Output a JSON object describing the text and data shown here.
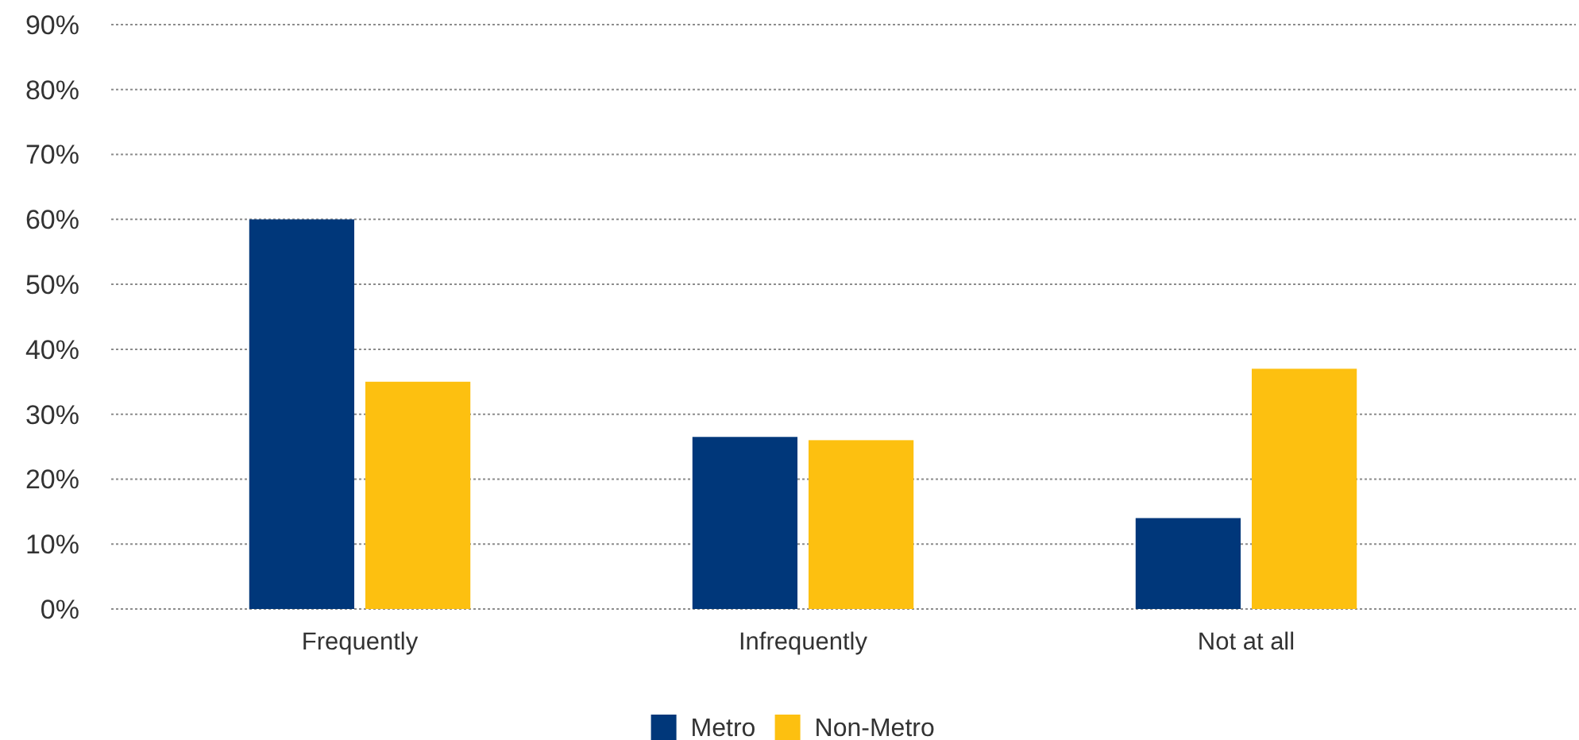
{
  "chart_data": {
    "type": "bar",
    "categories": [
      "Frequently",
      "Infrequently",
      "Not at all"
    ],
    "series": [
      {
        "name": "Metro",
        "color": "#00377a",
        "values": [
          60,
          26.5,
          14
        ]
      },
      {
        "name": "Non-Metro",
        "color": "#fdc010",
        "values": [
          35,
          26,
          37
        ]
      }
    ],
    "ylim": [
      0,
      90
    ],
    "yticks": [
      {
        "value": 0,
        "label": "0%"
      },
      {
        "value": 10,
        "label": "10%"
      },
      {
        "value": 20,
        "label": "20%"
      },
      {
        "value": 30,
        "label": "30%"
      },
      {
        "value": 40,
        "label": "40%"
      },
      {
        "value": 50,
        "label": "50%"
      },
      {
        "value": 60,
        "label": "60%"
      },
      {
        "value": 70,
        "label": "70%"
      },
      {
        "value": 80,
        "label": "80%"
      },
      {
        "value": 90,
        "label": "90%"
      }
    ],
    "grid": "y",
    "legend": "bottom"
  }
}
